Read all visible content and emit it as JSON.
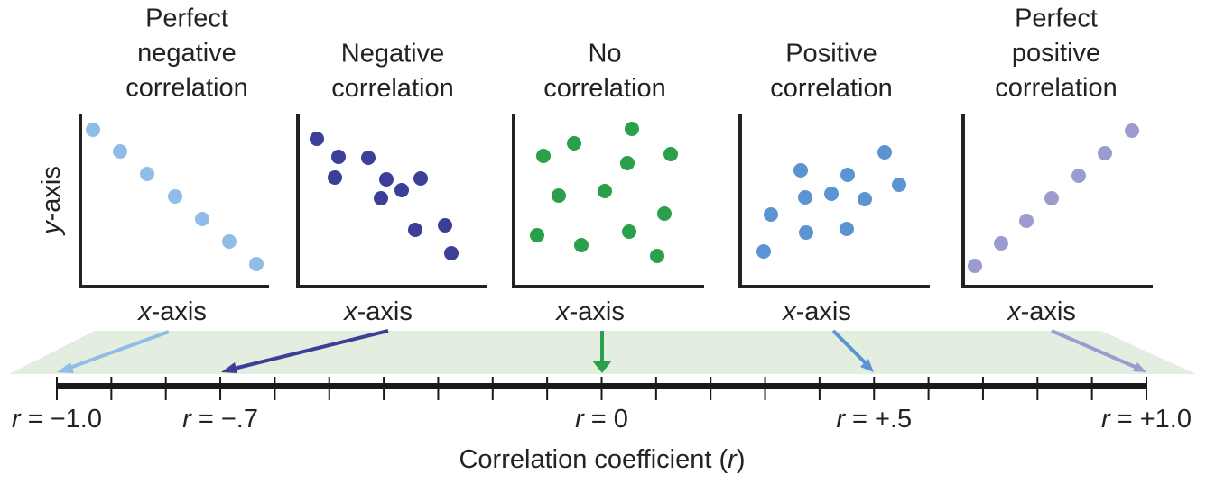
{
  "panels": [
    {
      "title": [
        "Perfect",
        "negative",
        "correlation"
      ],
      "x_label": [
        "x",
        "-axis"
      ]
    },
    {
      "title": [
        "Negative",
        "correlation"
      ],
      "x_label": [
        "x",
        "-axis"
      ]
    },
    {
      "title": [
        "No",
        "correlation"
      ],
      "x_label": [
        "x",
        "-axis"
      ]
    },
    {
      "title": [
        "Positive",
        "correlation"
      ],
      "x_label": [
        "x",
        "-axis"
      ]
    },
    {
      "title": [
        "Perfect",
        "positive",
        "correlation"
      ],
      "x_label": [
        "x",
        "-axis"
      ]
    }
  ],
  "y_label": [
    "y",
    "-axis"
  ],
  "scale": {
    "ticks": [
      {
        "value": -1,
        "label": [
          "r",
          " = −1.0"
        ]
      },
      {
        "value": -0.7,
        "label": [
          "r",
          " = −.7"
        ]
      },
      {
        "value": 0,
        "label": [
          "r",
          " = 0"
        ]
      },
      {
        "value": 0.5,
        "label": [
          "r",
          " = +.5"
        ]
      },
      {
        "value": 1,
        "label": [
          "r",
          " = +1.0"
        ]
      }
    ],
    "title": [
      "Correlation coefficient (",
      "r",
      ")"
    ]
  }
}
